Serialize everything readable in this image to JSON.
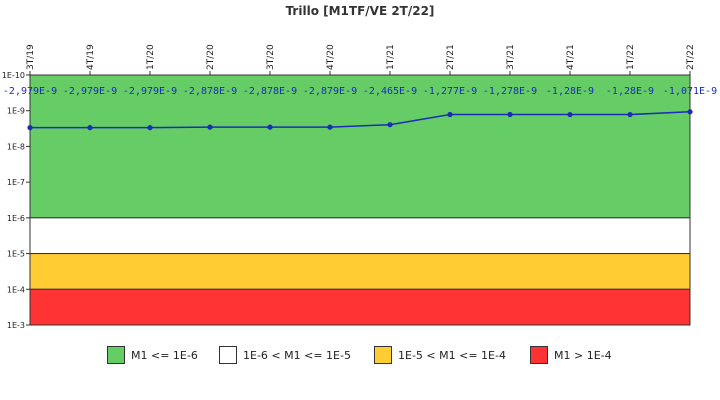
{
  "chart_data": {
    "type": "line",
    "title": "Trillo [M1TF/VE 2T/22]",
    "x": [
      "3T/19",
      "4T/19",
      "1T/20",
      "2T/20",
      "3T/20",
      "4T/20",
      "1T/21",
      "2T/21",
      "3T/21",
      "4T/21",
      "1T/22",
      "2T/22"
    ],
    "values": [
      2.979e-09,
      2.979e-09,
      2.979e-09,
      2.878e-09,
      2.878e-09,
      2.879e-09,
      2.465e-09,
      1.277e-09,
      1.278e-09,
      1.28e-09,
      1.28e-09,
      1.071e-09
    ],
    "value_labels": [
      "-2,979E-9",
      "-2,979E-9",
      "-2,979E-9",
      "-2,878E-9",
      "-2,878E-9",
      "-2,879E-9",
      "-2,465E-9",
      "-1,277E-9",
      "-1,278E-9",
      "-1,28E-9",
      "-1,28E-9",
      "-1,071E-9"
    ],
    "yscale": "log",
    "y_inverted": true,
    "ylim": [
      1e-10,
      0.001
    ],
    "y_ticks": [
      {
        "value": 1e-10,
        "label": "1E-10"
      },
      {
        "value": 1e-09,
        "label": "1E-9"
      },
      {
        "value": 1e-08,
        "label": "1E-8"
      },
      {
        "value": 1e-07,
        "label": "1E-7"
      },
      {
        "value": 1e-06,
        "label": "1E-6"
      },
      {
        "value": 1e-05,
        "label": "1E-5"
      },
      {
        "value": 0.0001,
        "label": "1E-4"
      },
      {
        "value": 0.001,
        "label": "1E-3"
      }
    ],
    "bands": [
      {
        "from": 1e-10,
        "to": 1e-06,
        "color": "#66cc66",
        "label": "M1 <= 1E-6"
      },
      {
        "from": 1e-06,
        "to": 1e-05,
        "color": "#ffffff",
        "label": "1E-6 < M1 <= 1E-5"
      },
      {
        "from": 1e-05,
        "to": 0.0001,
        "color": "#ffcc33",
        "label": "1E-5 < M1 <= 1E-4"
      },
      {
        "from": 0.0001,
        "to": 0.001,
        "color": "#ff3333",
        "label": "M1 > 1E-4"
      }
    ],
    "line_color": "#1a2eb8",
    "marker_color": "#1a2eb8",
    "legend_position": "bottom",
    "grid": false
  }
}
